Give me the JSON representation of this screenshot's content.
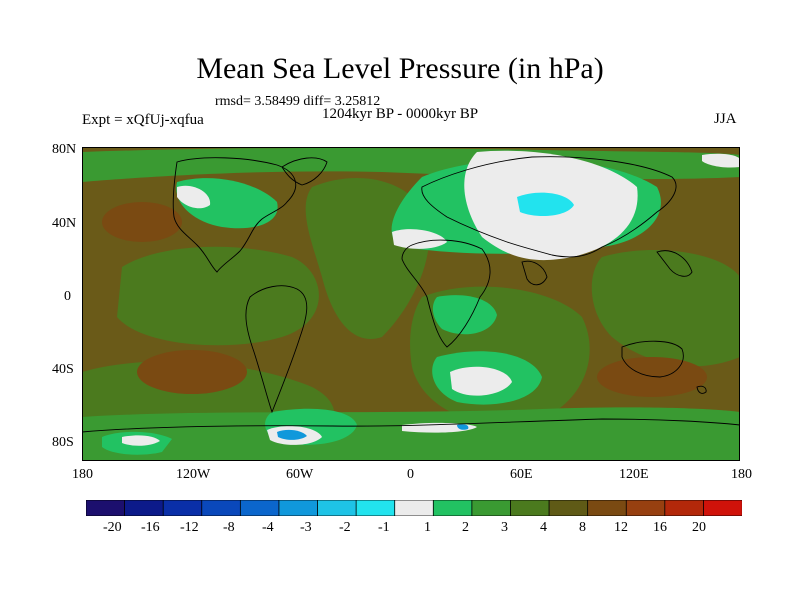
{
  "title": "Mean Sea Level Pressure (in hPa)",
  "stats": "rmsd= 3.58499 diff= 3.25812",
  "experiment": "Expt = xQfUj-xqfua",
  "period": "1204kyr BP - 0000kyr BP",
  "season": "JJA",
  "lat_labels": [
    "80N",
    "40N",
    "0",
    "40S",
    "80S"
  ],
  "lon_labels": [
    "180",
    "120W",
    "60W",
    "0",
    "60E",
    "120E",
    "180"
  ],
  "colorbar": {
    "labels": [
      "-20",
      "-16",
      "-12",
      "-8",
      "-4",
      "-3",
      "-2",
      "-1",
      "1",
      "2",
      "3",
      "4",
      "8",
      "12",
      "16",
      "20"
    ],
    "colors": [
      "#1c0f6e",
      "#0c1a8a",
      "#0a2fa8",
      "#0a48bb",
      "#0b66cc",
      "#1098db",
      "#1ec3e6",
      "#22e3ee",
      "#ececec",
      "#22c262",
      "#3a9a32",
      "#4b7a1e",
      "#5f5a16",
      "#7a4a12",
      "#974010",
      "#b3280a",
      "#d0120a"
    ]
  },
  "palette": {
    "land_line": "#000000",
    "brown": "#6a5a18",
    "olive": "#4b7a1e",
    "green": "#3a9a32",
    "bright_green": "#22c262",
    "white": "#ececec",
    "cyan": "#22e3ee",
    "blue": "#1098db",
    "orange_brown": "#7a4a12"
  }
}
